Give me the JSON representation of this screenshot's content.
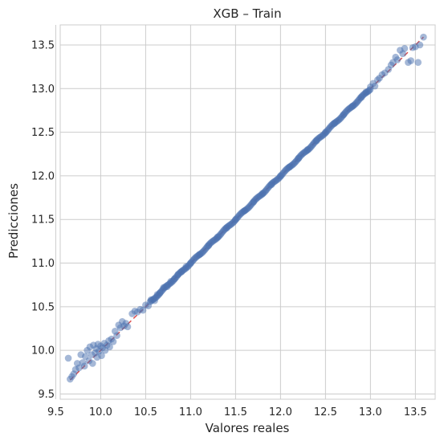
{
  "chart_data": {
    "type": "scatter",
    "title": "XGB – Train",
    "xlabel": "Valores reales",
    "ylabel": "Predicciones",
    "xlim": [
      9.55,
      13.72
    ],
    "ylim": [
      9.44,
      13.73
    ],
    "xticks": [
      "9.5",
      "10.0",
      "10.5",
      "11.0",
      "11.5",
      "12.0",
      "12.5",
      "13.0",
      "13.5"
    ],
    "yticks": [
      "9.5",
      "10.0",
      "10.5",
      "11.0",
      "11.5",
      "12.0",
      "12.5",
      "13.0",
      "13.5"
    ],
    "grid": true,
    "marker_color": "#4c72b0",
    "reference_line": {
      "from": [
        9.66,
        9.66
      ],
      "to": [
        13.59,
        13.59
      ],
      "color": "#dd4f4f",
      "style": "dashed"
    },
    "points": [
      [
        9.64,
        9.91
      ],
      [
        9.66,
        9.67
      ],
      [
        9.68,
        9.7
      ],
      [
        9.7,
        9.73
      ],
      [
        9.72,
        9.78
      ],
      [
        9.74,
        9.85
      ],
      [
        9.76,
        9.8
      ],
      [
        9.78,
        9.95
      ],
      [
        9.8,
        9.86
      ],
      [
        9.82,
        9.82
      ],
      [
        9.83,
        9.93
      ],
      [
        9.85,
        10.0
      ],
      [
        9.87,
        9.88
      ],
      [
        9.88,
        10.04
      ],
      [
        9.9,
        9.95
      ],
      [
        9.91,
        9.85
      ],
      [
        9.92,
        10.06
      ],
      [
        9.94,
        9.97
      ],
      [
        9.95,
        10.02
      ],
      [
        9.96,
        9.92
      ],
      [
        9.97,
        10.07
      ],
      [
        9.98,
        9.99
      ],
      [
        10.0,
        10.05
      ],
      [
        10.01,
        9.94
      ],
      [
        10.02,
        10.03
      ],
      [
        10.04,
        10.08
      ],
      [
        10.05,
        10.0
      ],
      [
        10.07,
        10.06
      ],
      [
        10.09,
        10.11
      ],
      [
        10.1,
        10.04
      ],
      [
        10.12,
        10.13
      ],
      [
        10.14,
        10.1
      ],
      [
        10.16,
        10.22
      ],
      [
        10.18,
        10.17
      ],
      [
        10.2,
        10.29
      ],
      [
        10.22,
        10.26
      ],
      [
        10.24,
        10.33
      ],
      [
        10.26,
        10.28
      ],
      [
        10.28,
        10.31
      ],
      [
        10.3,
        10.27
      ],
      [
        10.35,
        10.42
      ],
      [
        10.38,
        10.45
      ],
      [
        10.41,
        10.44
      ],
      [
        10.44,
        10.47
      ],
      [
        10.47,
        10.46
      ],
      [
        10.5,
        10.52
      ],
      [
        10.53,
        10.51
      ],
      [
        10.56,
        10.58
      ],
      [
        10.6,
        10.57
      ],
      [
        10.63,
        10.64
      ],
      [
        10.66,
        10.66
      ],
      [
        10.7,
        10.72
      ],
      [
        10.74,
        10.73
      ],
      [
        10.78,
        10.79
      ],
      [
        10.82,
        10.82
      ],
      [
        10.86,
        10.87
      ],
      [
        10.9,
        10.9
      ],
      [
        10.95,
        10.96
      ],
      [
        11.0,
        11.0
      ],
      [
        11.1,
        11.1
      ],
      [
        11.2,
        11.2
      ],
      [
        11.3,
        11.3
      ],
      [
        11.4,
        11.4
      ],
      [
        11.5,
        11.5
      ],
      [
        11.6,
        11.6
      ],
      [
        11.7,
        11.7
      ],
      [
        11.8,
        11.8
      ],
      [
        11.9,
        11.9
      ],
      [
        12.0,
        12.0
      ],
      [
        12.1,
        12.1
      ],
      [
        12.2,
        12.2
      ],
      [
        12.3,
        12.3
      ],
      [
        12.4,
        12.4
      ],
      [
        12.5,
        12.5
      ],
      [
        12.6,
        12.6
      ],
      [
        12.7,
        12.7
      ],
      [
        12.8,
        12.8
      ],
      [
        12.9,
        12.9
      ],
      [
        12.95,
        12.96
      ],
      [
        13.0,
        13.02
      ],
      [
        13.03,
        13.06
      ],
      [
        13.05,
        13.03
      ],
      [
        13.08,
        13.1
      ],
      [
        13.1,
        13.12
      ],
      [
        13.13,
        13.16
      ],
      [
        13.16,
        13.18
      ],
      [
        13.2,
        13.22
      ],
      [
        13.23,
        13.27
      ],
      [
        13.25,
        13.3
      ],
      [
        13.28,
        13.36
      ],
      [
        13.3,
        13.33
      ],
      [
        13.33,
        13.44
      ],
      [
        13.36,
        13.4
      ],
      [
        13.38,
        13.46
      ],
      [
        13.42,
        13.3
      ],
      [
        13.45,
        13.32
      ],
      [
        13.47,
        13.47
      ],
      [
        13.5,
        13.48
      ],
      [
        13.53,
        13.3
      ],
      [
        13.55,
        13.5
      ],
      [
        13.59,
        13.59
      ]
    ]
  }
}
